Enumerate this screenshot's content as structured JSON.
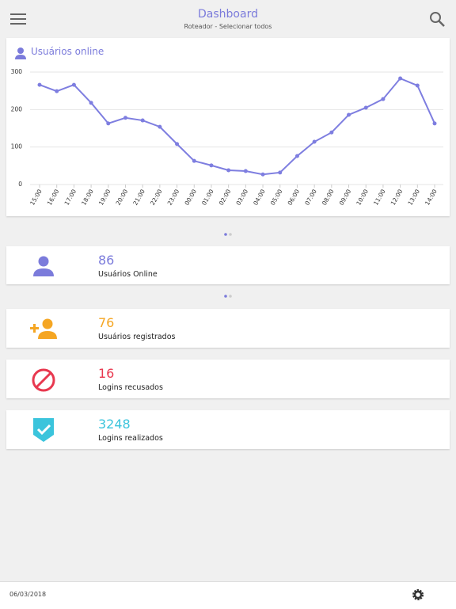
{
  "header": {
    "title": "Dashboard",
    "subtitle": "Roteador - Selecionar todos"
  },
  "chart_data": {
    "type": "line",
    "title": "Usuários online",
    "categories": [
      "15:00",
      "16:00",
      "17:00",
      "18:00",
      "19:00",
      "20:00",
      "21:00",
      "22:00",
      "23:00",
      "00:00",
      "01:00",
      "02:00",
      "03:00",
      "04:00",
      "05:00",
      "06:00",
      "07:00",
      "08:00",
      "09:00",
      "10:00",
      "11:00",
      "12:00",
      "13:00",
      "14:00"
    ],
    "values": [
      266,
      249,
      266,
      218,
      163,
      178,
      171,
      154,
      108,
      63,
      51,
      38,
      36,
      27,
      32,
      76,
      114,
      139,
      186,
      205,
      228,
      283,
      264,
      163
    ],
    "color": "#7e7ee0",
    "ylim": [
      0,
      300
    ],
    "yticks": [
      0,
      100,
      200,
      300
    ],
    "grid": true
  },
  "cards": [
    {
      "value": 86,
      "label": "Usuários Online",
      "color": "#7b7bdb"
    },
    {
      "value": 76,
      "label": "Usuários registrados",
      "color": "#f5a623"
    },
    {
      "value": 16,
      "label": "Logins recusados",
      "color": "#e8384f"
    },
    {
      "value": 3248,
      "label": "Logins realizados",
      "color": "#3bc4dc"
    }
  ],
  "footer": {
    "date": "06/03/2018"
  }
}
